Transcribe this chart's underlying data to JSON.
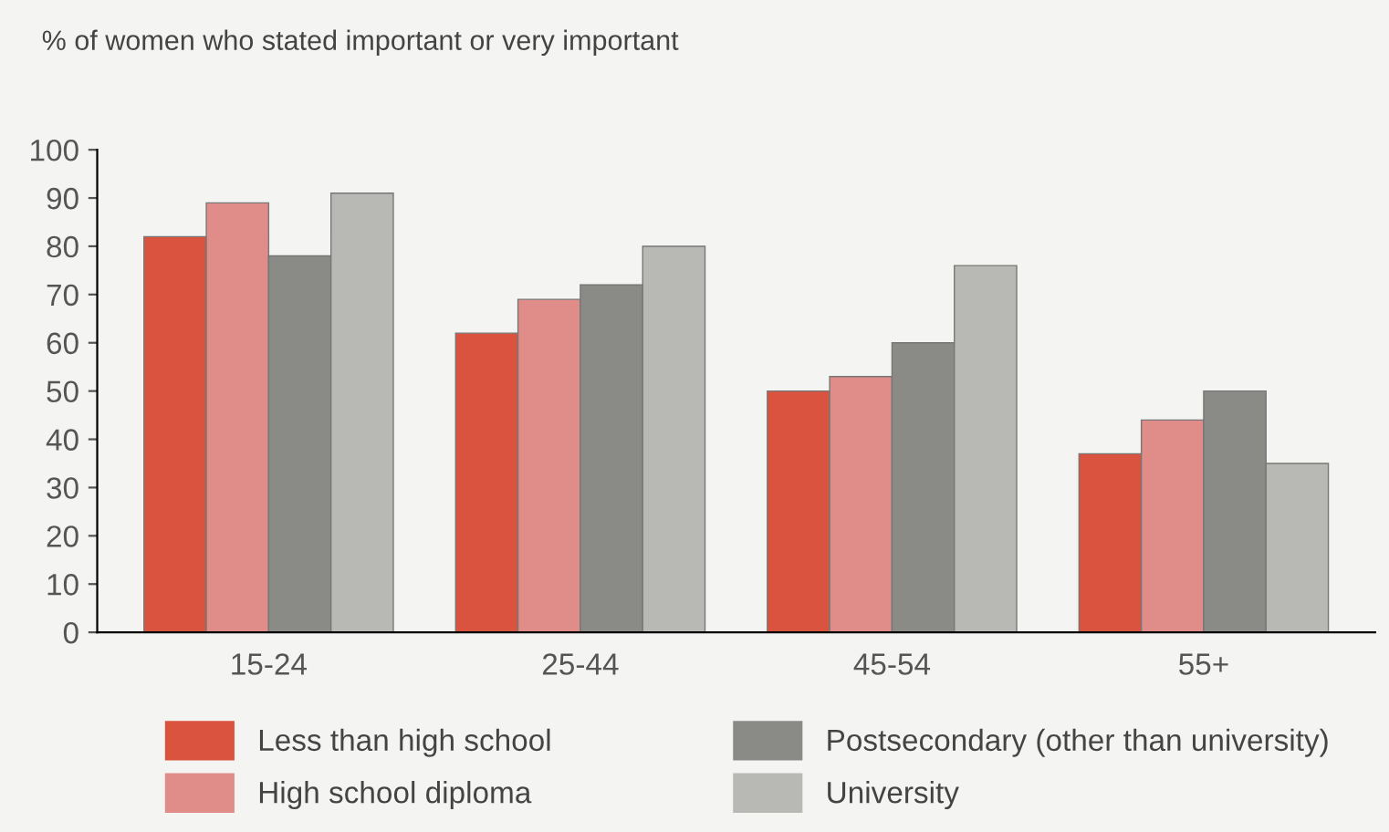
{
  "chart_data": {
    "type": "bar",
    "title": "% of women who stated important or very important",
    "categories": [
      "15-24",
      "25-44",
      "45-54",
      "55+"
    ],
    "series": [
      {
        "name": "Less than high school",
        "color": "#d9533f",
        "values": [
          82,
          62,
          50,
          37
        ]
      },
      {
        "name": "High school diploma",
        "color": "#e08c88",
        "values": [
          89,
          69,
          53,
          44
        ]
      },
      {
        "name": "Postsecondary (other than university)",
        "color": "#8a8a86",
        "values": [
          78,
          72,
          60,
          50
        ]
      },
      {
        "name": "University",
        "color": "#b8b9b4",
        "values": [
          91,
          80,
          76,
          35
        ]
      }
    ],
    "ylim": [
      0,
      100
    ],
    "yticks": [
      0,
      10,
      20,
      30,
      40,
      50,
      60,
      70,
      80,
      90,
      100
    ],
    "grid": false,
    "legend": "bottom"
  }
}
